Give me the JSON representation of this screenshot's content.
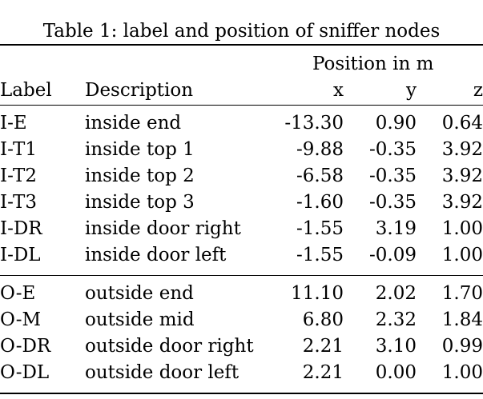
{
  "caption": "Table 1: label and position of sniffer nodes",
  "header": {
    "group": "Position in m",
    "label": "Label",
    "description": "Description",
    "x": "x",
    "y": "y",
    "z": "z"
  },
  "groups": [
    {
      "rows": [
        {
          "label": "I-E",
          "description": "inside end",
          "x": "-13.30",
          "y": "0.90",
          "z": "0.64"
        },
        {
          "label": "I-T1",
          "description": "inside top 1",
          "x": "-9.88",
          "y": "-0.35",
          "z": "3.92"
        },
        {
          "label": "I-T2",
          "description": "inside top 2",
          "x": "-6.58",
          "y": "-0.35",
          "z": "3.92"
        },
        {
          "label": "I-T3",
          "description": "inside top 3",
          "x": "-1.60",
          "y": "-0.35",
          "z": "3.92"
        },
        {
          "label": "I-DR",
          "description": "inside door right",
          "x": "-1.55",
          "y": "3.19",
          "z": "1.00"
        },
        {
          "label": "I-DL",
          "description": "inside door left",
          "x": "-1.55",
          "y": "-0.09",
          "z": "1.00"
        }
      ]
    },
    {
      "rows": [
        {
          "label": "O-E",
          "description": "outside end",
          "x": "11.10",
          "y": "2.02",
          "z": "1.70"
        },
        {
          "label": "O-M",
          "description": "outside mid",
          "x": "6.80",
          "y": "2.32",
          "z": "1.84"
        },
        {
          "label": "O-DR",
          "description": "outside door right",
          "x": "2.21",
          "y": "3.10",
          "z": "0.99"
        },
        {
          "label": "O-DL",
          "description": "outside door left",
          "x": "2.21",
          "y": "0.00",
          "z": "1.00"
        }
      ]
    }
  ]
}
